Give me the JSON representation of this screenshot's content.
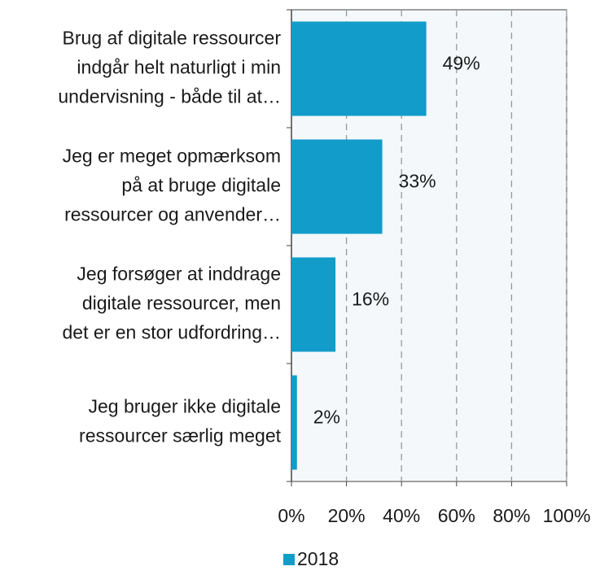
{
  "chart_data": {
    "type": "bar",
    "orientation": "horizontal",
    "categories": [
      "Brug af digitale ressourcer\nindgår helt naturligt i min\nundervisning - både til at…",
      "Jeg er meget opmærksom\npå at bruge digitale\nressourcer og anvender…",
      "Jeg forsøger at inddrage\ndigitale ressourcer, men\ndet er en stor udfordring…",
      "Jeg bruger ikke digitale\nressourcer særlig meget"
    ],
    "series": [
      {
        "name": "2018",
        "color": "#129cc9",
        "values": [
          49,
          33,
          16,
          2
        ],
        "value_labels": [
          "49%",
          "33%",
          "16%",
          "2%"
        ]
      }
    ],
    "xlim": [
      0,
      100
    ],
    "xticks": [
      {
        "value": 0,
        "label": "0%"
      },
      {
        "value": 20,
        "label": "20%"
      },
      {
        "value": 40,
        "label": "40%"
      },
      {
        "value": 60,
        "label": "60%"
      },
      {
        "value": 80,
        "label": "80%"
      },
      {
        "value": 100,
        "label": "100%"
      }
    ],
    "grid": true,
    "legend": "bottom"
  }
}
